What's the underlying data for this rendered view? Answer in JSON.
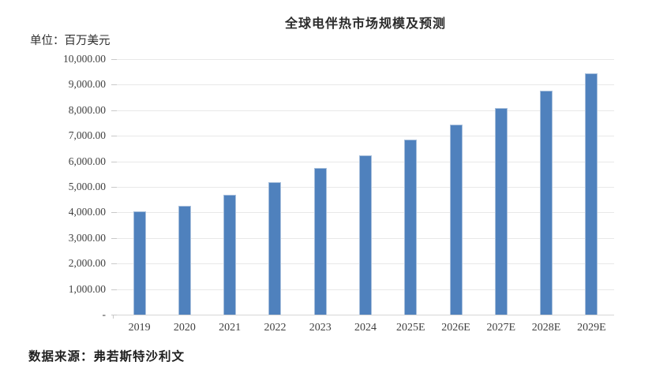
{
  "chart_data": {
    "type": "bar",
    "title": "全球电伴热市场规模及预测",
    "unit_label": "单位：百万美元",
    "categories": [
      "2019",
      "2020",
      "2021",
      "2022",
      "2023",
      "2024",
      "2025E",
      "2026E",
      "2027E",
      "2028E",
      "2029E"
    ],
    "values": [
      4030,
      4260,
      4690,
      5190,
      5740,
      6240,
      6850,
      7430,
      8100,
      8780,
      9450
    ],
    "xlabel": "",
    "ylabel": "",
    "ylim": [
      0,
      10000
    ],
    "y_tick_step": 1000,
    "y_tick_labels_top_to_bottom": [
      "10,000.00",
      "9,000.00",
      "8,000.00",
      "7,000.00",
      "6,000.00",
      "5,000.00",
      "4,000.00",
      "3,000.00",
      "2,000.00",
      "1,000.00",
      "-"
    ],
    "grid": true,
    "legend_position": "none",
    "bar_color": "#4f81bd",
    "bar_edge_color": "#a7bfdc",
    "gridline_color": "#e8e8e8",
    "text_color": "#3f3f3f"
  },
  "footer": {
    "text": "数据来源：弗若斯特沙利文"
  }
}
